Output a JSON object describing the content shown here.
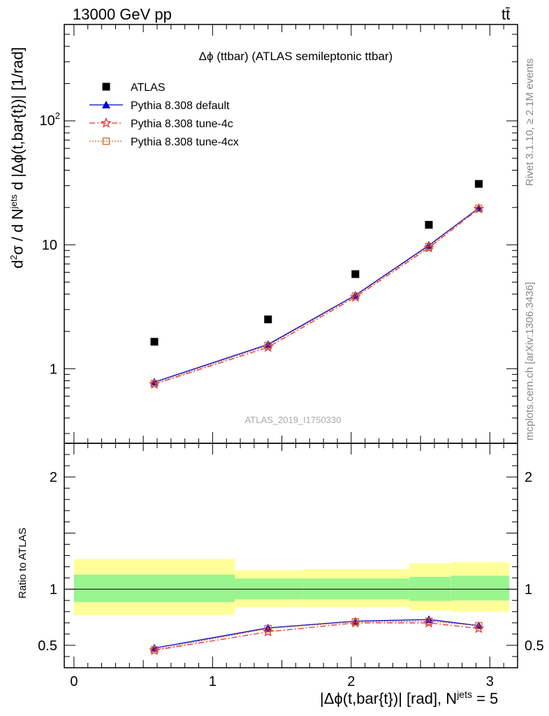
{
  "header": {
    "energy_label": "13000 GeV pp",
    "process_label": "tt̄"
  },
  "side_labels": {
    "rivet": "Rivet 3.1.10, ≥ 2.1M events",
    "mcplots": "mcplots.cern.ch [arXiv:1306.3436]"
  },
  "chart_data": {
    "type": "scatter",
    "title": "Δϕ (ttbar) (ATLAS semileptonic ttbar)",
    "watermark": "ATLAS_2019_I1750330",
    "ylabel": "d²σ / d Nʲᵉᵗˢ d |Δϕ(t,bar{t})| [1/rad]",
    "ylabel_parts": {
      "main": "d",
      "sup": "2",
      "rest": "σ / d N",
      "sup2": "jets",
      "tail": " d |Δϕ(t,bar{t})| [1/rad]"
    },
    "xlabel_main": "|Δϕ(t,bar{t})| [rad], N",
    "xlabel_sup": "jets",
    "xlabel_tail": " = 5",
    "ratio_ylabel": "Ratio to ATLAS",
    "xlim": [
      -0.07,
      3.2
    ],
    "ylim": [
      0.25,
      600
    ],
    "yscale": "log",
    "ratio_ylim": [
      0.3,
      2.3
    ],
    "x_ticks": [
      "0",
      "1",
      "2",
      "3"
    ],
    "y_ticks": [
      "1",
      "10",
      "10²"
    ],
    "ratio_ticks": [
      "0.5",
      "1",
      "2"
    ],
    "legend_position": "top-left",
    "bins": [
      {
        "lo": 0.0,
        "hi": 1.16,
        "x": 0.58,
        "data": 1.65,
        "band_in": [
          0.885,
          1.13
        ],
        "band_out": [
          0.77,
          1.27
        ]
      },
      {
        "lo": 1.16,
        "hi": 1.65,
        "x": 1.4,
        "data": 2.5,
        "band_in": [
          0.91,
          1.095
        ],
        "band_out": [
          0.84,
          1.17
        ]
      },
      {
        "lo": 1.65,
        "hi": 2.42,
        "x": 2.03,
        "data": 5.8,
        "band_in": [
          0.91,
          1.095
        ],
        "band_out": [
          0.84,
          1.18
        ]
      },
      {
        "lo": 2.42,
        "hi": 2.72,
        "x": 2.56,
        "data": 14.5,
        "band_in": [
          0.895,
          1.11
        ],
        "band_out": [
          0.81,
          1.23
        ]
      },
      {
        "lo": 2.72,
        "hi": 3.14,
        "x": 2.92,
        "data": 31.0,
        "band_in": [
          0.9,
          1.12
        ],
        "band_out": [
          0.8,
          1.24
        ]
      }
    ],
    "series": [
      {
        "name": "ATLAS",
        "marker": "square",
        "color": "#000000",
        "dash": "",
        "values": [
          1.65,
          2.5,
          5.8,
          14.5,
          31.0
        ]
      },
      {
        "name": "Pythia 8.308 default",
        "marker": "triangle",
        "color": "#0000cc",
        "dash": "",
        "values": [
          0.78,
          1.57,
          3.92,
          9.9,
          19.8
        ],
        "ratio": [
          0.475,
          0.655,
          0.715,
          0.73,
          0.675
        ]
      },
      {
        "name": "Pythia 8.308 tune-4c",
        "marker": "star",
        "color": "#e8333a",
        "dash": "8,3,2,3",
        "values": [
          0.75,
          1.49,
          3.78,
          9.45,
          19.5
        ],
        "ratio": [
          0.455,
          0.62,
          0.7,
          0.7,
          0.65
        ]
      },
      {
        "name": "Pythia 8.308 tune-4cx",
        "marker": "opensquare",
        "color": "#cc6633",
        "dash": "2,2",
        "values": [
          0.76,
          1.54,
          3.86,
          9.7,
          19.7
        ],
        "ratio": [
          0.46,
          0.65,
          0.71,
          0.715,
          0.675
        ]
      }
    ],
    "band_colors": {
      "inner": "#99f58d",
      "outer": "#ffff99"
    }
  }
}
